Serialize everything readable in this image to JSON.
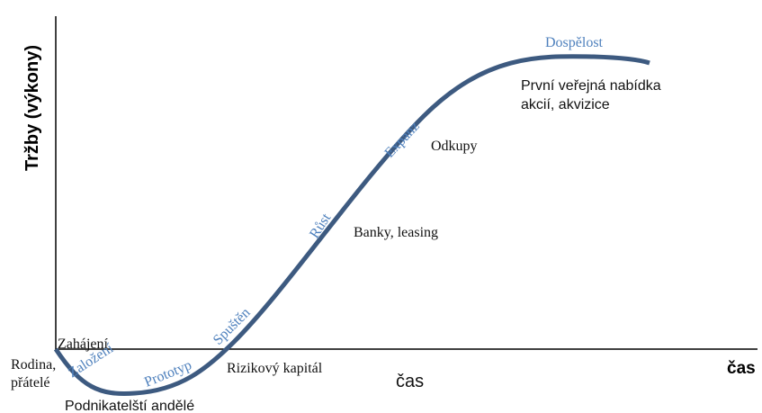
{
  "axes": {
    "y_label": "Tržby (výkony)",
    "x_label": "čas",
    "x_label_end": "čas"
  },
  "stages": [
    "Založení",
    "Prototyp",
    "Spuštěn",
    "Růst",
    "Expanz",
    "Dospělost"
  ],
  "start": "Zahájení",
  "funding": [
    {
      "lines": [
        "Rodina,",
        "přátelé"
      ]
    },
    {
      "lines": [
        "Podnikatelští andělé"
      ]
    },
    {
      "lines": [
        "Rizikový kapitál"
      ]
    },
    {
      "lines": [
        "Banky, leasing"
      ]
    },
    {
      "lines": [
        "Odkupy"
      ]
    },
    {
      "lines": [
        "První veřejná nabídka",
        "akcií, akvizice"
      ]
    }
  ]
}
